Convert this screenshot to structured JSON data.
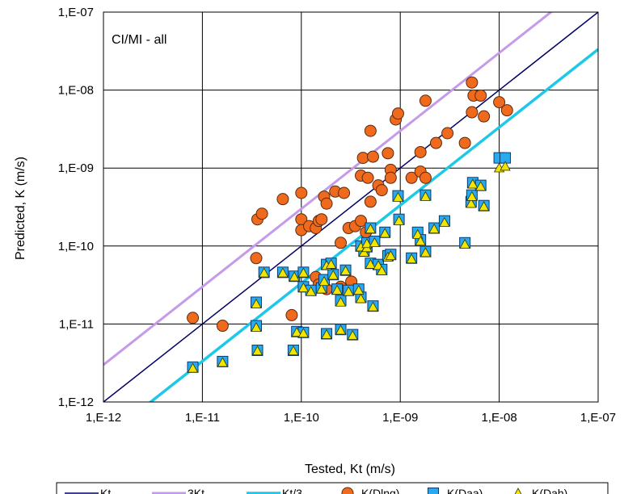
{
  "chart_data": {
    "type": "scatter",
    "scale": "log-log",
    "annotation": "CI/MI - all",
    "xlabel": "Tested, Kt (m/s)",
    "ylabel": "Predicted, K (m/s)",
    "xlim": [
      1e-12,
      1e-07
    ],
    "ylim": [
      1e-12,
      1e-07
    ],
    "x_ticks": [
      1e-12,
      1e-11,
      1e-10,
      1e-09,
      1e-08,
      1e-07
    ],
    "y_ticks": [
      1e-12,
      1e-11,
      1e-10,
      1e-09,
      1e-08,
      1e-07
    ],
    "x_tick_labels": [
      "1,E-12",
      "1,E-11",
      "1,E-10",
      "1,E-09",
      "1,E-08",
      "1,E-07"
    ],
    "y_tick_labels": [
      "1,E-12",
      "1,E-11",
      "1,E-10",
      "1,E-09",
      "1,E-08",
      "1,E-07"
    ],
    "grid": true,
    "legend_position": "bottom",
    "lines": [
      {
        "name": "Kt",
        "factor": 1,
        "color": "#000066"
      },
      {
        "name": "3Kt",
        "factor": 3,
        "color": "#c59ae8"
      },
      {
        "name": "Kt/3",
        "factor": 0.3333,
        "color": "#1ec8e8"
      }
    ],
    "series": [
      {
        "name": "K(Dlng)",
        "marker": "circle",
        "color": "#f06a1e",
        "points": [
          [
            8e-12,
            1.2e-11
          ],
          [
            1.6e-11,
            9.5e-12
          ],
          [
            3.5e-11,
            7e-11
          ],
          [
            3.6e-11,
            2.2e-10
          ],
          [
            4e-11,
            2.6e-10
          ],
          [
            6.5e-11,
            4e-10
          ],
          [
            8e-11,
            1.3e-11
          ],
          [
            1e-10,
            4.8e-10
          ],
          [
            1e-10,
            2.2e-10
          ],
          [
            1e-10,
            1.6e-10
          ],
          [
            1.2e-10,
            1.8e-10
          ],
          [
            1.4e-10,
            1.7e-10
          ],
          [
            1.5e-10,
            2.1e-10
          ],
          [
            1.6e-10,
            2.2e-10
          ],
          [
            1.7e-10,
            4.3e-10
          ],
          [
            1.8e-10,
            3.5e-10
          ],
          [
            2.2e-10,
            5e-10
          ],
          [
            2.5e-10,
            1.1e-10
          ],
          [
            2.7e-10,
            4.8e-10
          ],
          [
            3e-10,
            1.7e-10
          ],
          [
            3.5e-10,
            1.8e-10
          ],
          [
            4e-10,
            2.1e-10
          ],
          [
            4.2e-10,
            1.35e-09
          ],
          [
            4e-10,
            8e-10
          ],
          [
            4.5e-10,
            1.5e-10
          ],
          [
            4.7e-10,
            7.5e-10
          ],
          [
            5e-10,
            3.7e-10
          ],
          [
            5e-10,
            3e-09
          ],
          [
            5.3e-10,
            1.4e-09
          ],
          [
            6e-10,
            6e-10
          ],
          [
            6.5e-10,
            5.2e-10
          ],
          [
            7.5e-10,
            1.55e-09
          ],
          [
            8e-10,
            9.5e-10
          ],
          [
            8e-10,
            7.5e-10
          ],
          [
            9e-10,
            4.2e-09
          ],
          [
            9.5e-10,
            5e-09
          ],
          [
            1.3e-09,
            7.5e-10
          ],
          [
            1.6e-09,
            1.6e-09
          ],
          [
            1.6e-09,
            9e-10
          ],
          [
            1.8e-09,
            7.3e-09
          ],
          [
            1.8e-09,
            7.5e-10
          ],
          [
            2.3e-09,
            2.1e-09
          ],
          [
            3e-09,
            2.8e-09
          ],
          [
            4.5e-09,
            2.1e-09
          ],
          [
            5.3e-09,
            5.2e-09
          ],
          [
            5.3e-09,
            1.25e-08
          ],
          [
            5.5e-09,
            8.5e-09
          ],
          [
            6.5e-09,
            8.5e-09
          ],
          [
            7e-09,
            4.6e-09
          ],
          [
            1e-08,
            7e-09
          ],
          [
            1.2e-08,
            5.5e-09
          ],
          [
            1.4e-10,
            4e-11
          ],
          [
            1.5e-10,
            3.2e-11
          ],
          [
            1.8e-10,
            2.8e-11
          ],
          [
            2.5e-10,
            3e-11
          ],
          [
            3.2e-10,
            3.5e-11
          ]
        ]
      },
      {
        "name": "K(Daa)",
        "marker": "square",
        "color": "#27aaf0",
        "points": [
          [
            8e-12,
            2.8e-12
          ],
          [
            1.6e-11,
            3.3e-12
          ],
          [
            3.5e-11,
            1.9e-11
          ],
          [
            3.5e-11,
            9.5e-12
          ],
          [
            3.6e-11,
            4.6e-12
          ],
          [
            4.2e-11,
            4.6e-11
          ],
          [
            6.5e-11,
            4.6e-11
          ],
          [
            8.3e-11,
            4.6e-12
          ],
          [
            8.5e-11,
            4.1e-11
          ],
          [
            9e-11,
            8e-12
          ],
          [
            1.05e-10,
            4.6e-11
          ],
          [
            1.05e-10,
            3e-11
          ],
          [
            1.05e-10,
            7.8e-12
          ],
          [
            1.25e-10,
            2.7e-11
          ],
          [
            1.6e-10,
            2.9e-11
          ],
          [
            1.7e-10,
            3.7e-11
          ],
          [
            1.8e-10,
            5.8e-11
          ],
          [
            1.8e-10,
            7.5e-12
          ],
          [
            2e-10,
            6e-11
          ],
          [
            2.1e-10,
            4.3e-11
          ],
          [
            2.3e-10,
            2.8e-11
          ],
          [
            2.5e-10,
            2e-11
          ],
          [
            2.5e-10,
            8.5e-12
          ],
          [
            2.8e-10,
            4.9e-11
          ],
          [
            3e-10,
            2.7e-11
          ],
          [
            3.3e-10,
            7.3e-12
          ],
          [
            3.8e-10,
            2.8e-11
          ],
          [
            4e-10,
            1e-10
          ],
          [
            4e-10,
            2.2e-11
          ],
          [
            4.3e-10,
            8.6e-11
          ],
          [
            4.6e-10,
            9.8e-11
          ],
          [
            4.6e-10,
            1.1e-10
          ],
          [
            5e-10,
            6e-11
          ],
          [
            5e-10,
            1.7e-10
          ],
          [
            5.3e-10,
            1.7e-11
          ],
          [
            5.5e-10,
            1.15e-10
          ],
          [
            6e-10,
            5.8e-11
          ],
          [
            6.5e-10,
            5e-11
          ],
          [
            7e-10,
            1.5e-10
          ],
          [
            7.5e-10,
            7.5e-11
          ],
          [
            8e-10,
            7.8e-11
          ],
          [
            9.5e-10,
            4.4e-10
          ],
          [
            9.7e-10,
            2.2e-10
          ],
          [
            1.3e-09,
            7e-11
          ],
          [
            1.5e-09,
            1.5e-10
          ],
          [
            1.6e-09,
            1.2e-10
          ],
          [
            1.8e-09,
            8.5e-11
          ],
          [
            1.8e-09,
            4.5e-10
          ],
          [
            2.2e-09,
            1.7e-10
          ],
          [
            2.8e-09,
            2.1e-10
          ],
          [
            4.5e-09,
            1.1e-10
          ],
          [
            5.2e-09,
            3.7e-10
          ],
          [
            5.3e-09,
            4.5e-10
          ],
          [
            5.4e-09,
            6.5e-10
          ],
          [
            6.5e-09,
            6e-10
          ],
          [
            7e-09,
            3.3e-10
          ],
          [
            1e-08,
            1.35e-09
          ],
          [
            1.15e-08,
            1.35e-09
          ]
        ]
      },
      {
        "name": "K(Dah)",
        "marker": "triangle",
        "color": "#f2e600",
        "points": [
          [
            8e-12,
            2.7e-12
          ],
          [
            1.6e-11,
            3.2e-12
          ],
          [
            3.5e-11,
            1.8e-11
          ],
          [
            3.5e-11,
            9e-12
          ],
          [
            3.6e-11,
            4.5e-12
          ],
          [
            4.2e-11,
            4.5e-11
          ],
          [
            6.5e-11,
            4.5e-11
          ],
          [
            8.3e-11,
            4.5e-12
          ],
          [
            8.5e-11,
            4e-11
          ],
          [
            9e-11,
            7.8e-12
          ],
          [
            1.05e-10,
            4.5e-11
          ],
          [
            1.05e-10,
            2.9e-11
          ],
          [
            1.05e-10,
            7.6e-12
          ],
          [
            1.25e-10,
            2.6e-11
          ],
          [
            1.6e-10,
            2.8e-11
          ],
          [
            1.7e-10,
            3.5e-11
          ],
          [
            1.8e-10,
            5.6e-11
          ],
          [
            1.8e-10,
            7.3e-12
          ],
          [
            2e-10,
            5.8e-11
          ],
          [
            2.1e-10,
            4.2e-11
          ],
          [
            2.3e-10,
            2.7e-11
          ],
          [
            2.5e-10,
            1.9e-11
          ],
          [
            2.5e-10,
            8.3e-12
          ],
          [
            2.8e-10,
            4.8e-11
          ],
          [
            3e-10,
            2.6e-11
          ],
          [
            3.3e-10,
            7.1e-12
          ],
          [
            3.8e-10,
            2.7e-11
          ],
          [
            4e-10,
            9.7e-11
          ],
          [
            4e-10,
            2.1e-11
          ],
          [
            4.3e-10,
            8.3e-11
          ],
          [
            4.6e-10,
            9.5e-11
          ],
          [
            4.6e-10,
            1.07e-10
          ],
          [
            5e-10,
            5.8e-11
          ],
          [
            5e-10,
            1.65e-10
          ],
          [
            5.3e-10,
            1.65e-11
          ],
          [
            5.5e-10,
            1.1e-10
          ],
          [
            6e-10,
            5.6e-11
          ],
          [
            6.5e-10,
            4.8e-11
          ],
          [
            7e-10,
            1.45e-10
          ],
          [
            7.5e-10,
            7.2e-11
          ],
          [
            8e-10,
            7.5e-11
          ],
          [
            9.5e-10,
            4.2e-10
          ],
          [
            9.7e-10,
            2.1e-10
          ],
          [
            1.3e-09,
            6.8e-11
          ],
          [
            1.5e-09,
            1.4e-10
          ],
          [
            1.6e-09,
            1.15e-10
          ],
          [
            1.8e-09,
            8.2e-11
          ],
          [
            1.8e-09,
            4.3e-10
          ],
          [
            2.2e-09,
            1.65e-10
          ],
          [
            2.8e-09,
            2e-10
          ],
          [
            4.5e-09,
            1.05e-10
          ],
          [
            5.2e-09,
            3.5e-10
          ],
          [
            5.3e-09,
            4.3e-10
          ],
          [
            5.4e-09,
            6.2e-10
          ],
          [
            6.5e-09,
            5.8e-10
          ],
          [
            7e-09,
            3.2e-10
          ],
          [
            1e-08,
            1e-09
          ],
          [
            1.15e-08,
            1.05e-09
          ]
        ]
      }
    ]
  }
}
